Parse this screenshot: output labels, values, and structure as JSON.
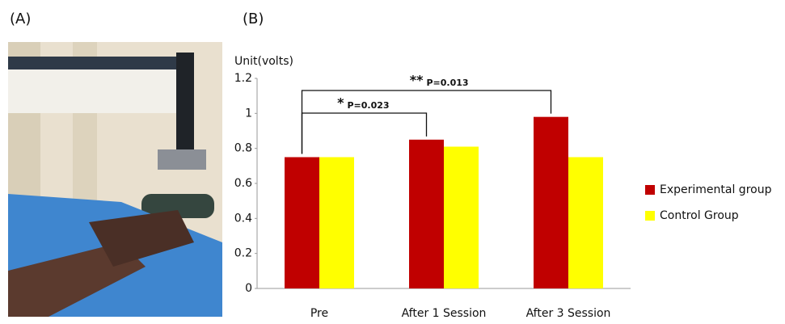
{
  "panel_labels": [
    "(A)",
    "(B)"
  ],
  "chart_data": {
    "type": "bar",
    "y_label": "Unit(volts)",
    "categories": [
      "Pre",
      "After 1 Session",
      "After 3 Session"
    ],
    "series": [
      {
        "name": "Experimental group",
        "color": "#c00000",
        "values": [
          0.75,
          0.85,
          0.98
        ]
      },
      {
        "name": "Control Group",
        "color": "#ffff00",
        "values": [
          0.75,
          0.81,
          0.75
        ]
      }
    ],
    "ylim": [
      0,
      1.2
    ],
    "yticks": [
      0,
      0.2,
      0.4,
      0.6,
      0.8,
      1,
      1.2
    ],
    "grid": false,
    "legend": "right",
    "annotations": [
      {
        "mark": "*",
        "text": "P=0.023"
      },
      {
        "mark": "**",
        "text": "P=0.013"
      }
    ]
  }
}
